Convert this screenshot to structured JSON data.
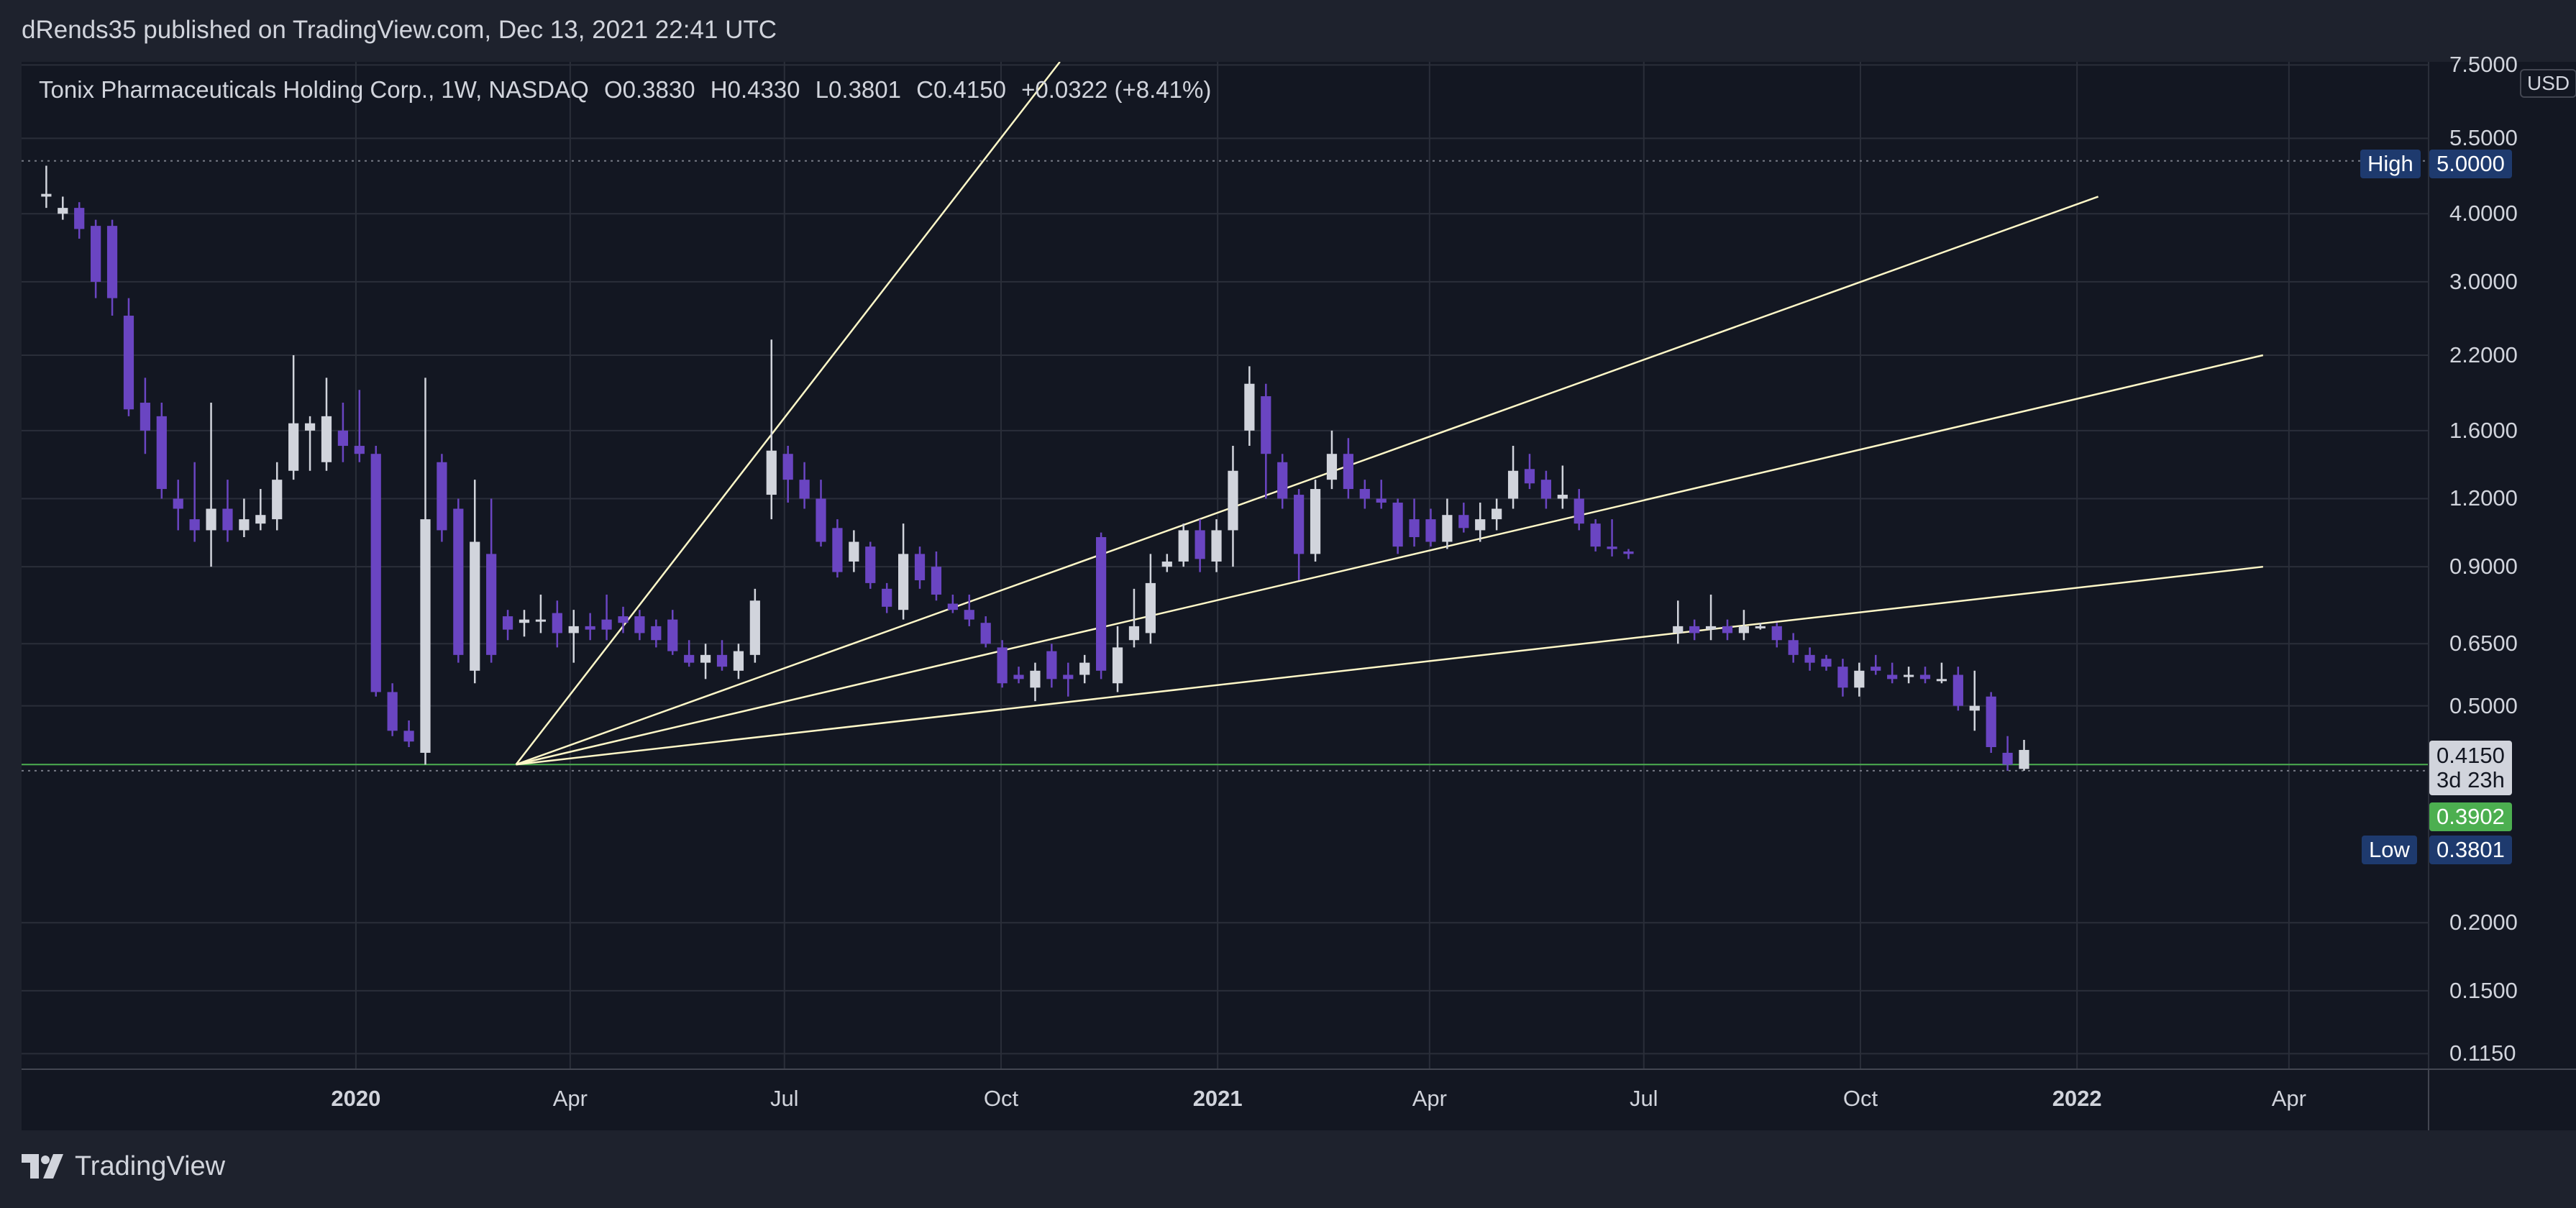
{
  "header": {
    "publish_info": "dRends35 published on TradingView.com, Dec 13, 2021 22:41 UTC"
  },
  "legend": {
    "symbol": "Tonix Pharmaceuticals Holding Corp., 1W, NASDAQ",
    "open": "O0.3830",
    "high": "H0.4330",
    "low": "L0.3801",
    "close": "C0.4150",
    "change": "+0.0322 (+8.41%)"
  },
  "currency": "USD",
  "price_tags": {
    "high_label": "High",
    "high_value": "5.0000",
    "low_label": "Low",
    "low_value": "0.3801",
    "last_value": "0.4150",
    "countdown": "3d 23h",
    "line_value": "0.3902"
  },
  "footer": {
    "brand": "TradingView"
  },
  "colors": {
    "background": "#131722",
    "bull_candle": "#d1d4dc",
    "bear_candle": "#6a45c2",
    "trendline": "#fff8c8",
    "horizontal_line": "#4caf50",
    "tag_blue": "#1e3a6e",
    "tag_green": "#4caf50"
  },
  "chart_data": {
    "type": "candlestick",
    "y_scale": "log",
    "ylim": [
      0.108,
      7.6
    ],
    "y_ticks": [
      "7.5000",
      "5.5000",
      "4.0000",
      "3.0000",
      "2.2000",
      "1.6000",
      "1.2000",
      "0.9000",
      "0.6500",
      "0.5000",
      "0.2000",
      "0.1500",
      "0.1150"
    ],
    "xlim": [
      "2019-08-12",
      "2022-05-30"
    ],
    "x_ticks": [
      {
        "label": "2020",
        "date": "2020-01-01",
        "bold": true
      },
      {
        "label": "Apr",
        "date": "2020-04-01",
        "bold": false
      },
      {
        "label": "Jul",
        "date": "2020-07-01",
        "bold": false
      },
      {
        "label": "Oct",
        "date": "2020-10-01",
        "bold": false
      },
      {
        "label": "2021",
        "date": "2021-01-01",
        "bold": true
      },
      {
        "label": "Apr",
        "date": "2021-04-01",
        "bold": false
      },
      {
        "label": "Jul",
        "date": "2021-07-01",
        "bold": false
      },
      {
        "label": "Oct",
        "date": "2021-10-01",
        "bold": false
      },
      {
        "label": "2022",
        "date": "2022-01-01",
        "bold": true
      },
      {
        "label": "Apr",
        "date": "2022-04-01",
        "bold": false
      }
    ],
    "horizontal_lines": [
      {
        "price": 5.0,
        "style": "dotted",
        "color": "#787b86"
      },
      {
        "price": 0.3801,
        "style": "dotted",
        "color": "#787b86"
      },
      {
        "price": 0.3902,
        "style": "solid",
        "color": "#4caf50"
      }
    ],
    "fan_lines": {
      "origin": {
        "date": "2020-03-09",
        "price": 0.3902
      },
      "targets": [
        {
          "date": "2020-10-26",
          "price": 7.6
        },
        {
          "date": "2022-03-21",
          "price": 2.2
        },
        {
          "date": "2022-03-21",
          "price": 0.9
        },
        {
          "date": "2022-01-10",
          "price": 4.3
        }
      ]
    },
    "candles": [
      {
        "date": "2019-08-19",
        "o": 4.3,
        "h": 4.9,
        "l": 4.1,
        "c": 4.35
      },
      {
        "date": "2019-08-26",
        "o": 4.0,
        "h": 4.3,
        "l": 3.9,
        "c": 4.1
      },
      {
        "date": "2019-09-02",
        "o": 4.1,
        "h": 4.2,
        "l": 3.6,
        "c": 3.75
      },
      {
        "date": "2019-09-09",
        "o": 3.8,
        "h": 3.9,
        "l": 2.8,
        "c": 3.0
      },
      {
        "date": "2019-09-16",
        "o": 3.8,
        "h": 3.9,
        "l": 2.6,
        "c": 2.8
      },
      {
        "date": "2019-09-23",
        "o": 2.6,
        "h": 2.8,
        "l": 1.7,
        "c": 1.75
      },
      {
        "date": "2019-09-30",
        "o": 1.8,
        "h": 2.0,
        "l": 1.45,
        "c": 1.6
      },
      {
        "date": "2019-10-07",
        "o": 1.7,
        "h": 1.8,
        "l": 1.2,
        "c": 1.25
      },
      {
        "date": "2019-10-14",
        "o": 1.2,
        "h": 1.3,
        "l": 1.05,
        "c": 1.15
      },
      {
        "date": "2019-10-21",
        "o": 1.1,
        "h": 1.4,
        "l": 1.0,
        "c": 1.05
      },
      {
        "date": "2019-10-28",
        "o": 1.05,
        "h": 1.8,
        "l": 0.9,
        "c": 1.15
      },
      {
        "date": "2019-11-04",
        "o": 1.15,
        "h": 1.3,
        "l": 1.0,
        "c": 1.05
      },
      {
        "date": "2019-11-11",
        "o": 1.05,
        "h": 1.2,
        "l": 1.02,
        "c": 1.1
      },
      {
        "date": "2019-11-18",
        "o": 1.08,
        "h": 1.25,
        "l": 1.05,
        "c": 1.12
      },
      {
        "date": "2019-11-25",
        "o": 1.1,
        "h": 1.4,
        "l": 1.05,
        "c": 1.3
      },
      {
        "date": "2019-12-02",
        "o": 1.35,
        "h": 2.2,
        "l": 1.3,
        "c": 1.65
      },
      {
        "date": "2019-12-09",
        "o": 1.6,
        "h": 1.7,
        "l": 1.35,
        "c": 1.65
      },
      {
        "date": "2019-12-16",
        "o": 1.4,
        "h": 2.0,
        "l": 1.35,
        "c": 1.7
      },
      {
        "date": "2019-12-23",
        "o": 1.6,
        "h": 1.8,
        "l": 1.4,
        "c": 1.5
      },
      {
        "date": "2019-12-30",
        "o": 1.5,
        "h": 1.9,
        "l": 1.4,
        "c": 1.45
      },
      {
        "date": "2020-01-06",
        "o": 1.45,
        "h": 1.5,
        "l": 0.52,
        "c": 0.53
      },
      {
        "date": "2020-01-13",
        "o": 0.53,
        "h": 0.55,
        "l": 0.44,
        "c": 0.45
      },
      {
        "date": "2020-01-20",
        "o": 0.45,
        "h": 0.47,
        "l": 0.42,
        "c": 0.43
      },
      {
        "date": "2020-01-27",
        "o": 0.41,
        "h": 2.0,
        "l": 0.39,
        "c": 1.1
      },
      {
        "date": "2020-02-03",
        "o": 1.4,
        "h": 1.45,
        "l": 1.0,
        "c": 1.05
      },
      {
        "date": "2020-02-10",
        "o": 1.15,
        "h": 1.2,
        "l": 0.6,
        "c": 0.62
      },
      {
        "date": "2020-02-17",
        "o": 0.58,
        "h": 1.3,
        "l": 0.55,
        "c": 1.0
      },
      {
        "date": "2020-02-24",
        "o": 0.95,
        "h": 1.2,
        "l": 0.6,
        "c": 0.62
      },
      {
        "date": "2020-03-02",
        "o": 0.73,
        "h": 0.75,
        "l": 0.66,
        "c": 0.69
      },
      {
        "date": "2020-03-09",
        "o": 0.71,
        "h": 0.75,
        "l": 0.67,
        "c": 0.72
      },
      {
        "date": "2020-03-16",
        "o": 0.72,
        "h": 0.8,
        "l": 0.68,
        "c": 0.72
      },
      {
        "date": "2020-03-23",
        "o": 0.74,
        "h": 0.78,
        "l": 0.64,
        "c": 0.68
      },
      {
        "date": "2020-03-30",
        "o": 0.68,
        "h": 0.75,
        "l": 0.6,
        "c": 0.7
      },
      {
        "date": "2020-04-06",
        "o": 0.7,
        "h": 0.74,
        "l": 0.66,
        "c": 0.69
      },
      {
        "date": "2020-04-13",
        "o": 0.72,
        "h": 0.8,
        "l": 0.66,
        "c": 0.69
      },
      {
        "date": "2020-04-20",
        "o": 0.73,
        "h": 0.76,
        "l": 0.68,
        "c": 0.71
      },
      {
        "date": "2020-04-27",
        "o": 0.73,
        "h": 0.75,
        "l": 0.66,
        "c": 0.68
      },
      {
        "date": "2020-05-04",
        "o": 0.7,
        "h": 0.72,
        "l": 0.64,
        "c": 0.66
      },
      {
        "date": "2020-05-11",
        "o": 0.72,
        "h": 0.75,
        "l": 0.62,
        "c": 0.63
      },
      {
        "date": "2020-05-18",
        "o": 0.62,
        "h": 0.66,
        "l": 0.59,
        "c": 0.6
      },
      {
        "date": "2020-05-25",
        "o": 0.6,
        "h": 0.65,
        "l": 0.56,
        "c": 0.62
      },
      {
        "date": "2020-06-01",
        "o": 0.62,
        "h": 0.66,
        "l": 0.58,
        "c": 0.59
      },
      {
        "date": "2020-06-08",
        "o": 0.58,
        "h": 0.65,
        "l": 0.56,
        "c": 0.63
      },
      {
        "date": "2020-06-15",
        "o": 0.62,
        "h": 0.82,
        "l": 0.6,
        "c": 0.78
      },
      {
        "date": "2020-06-22",
        "o": 1.22,
        "h": 2.35,
        "l": 1.1,
        "c": 1.47
      },
      {
        "date": "2020-06-29",
        "o": 1.45,
        "h": 1.5,
        "l": 1.18,
        "c": 1.3
      },
      {
        "date": "2020-07-06",
        "o": 1.3,
        "h": 1.4,
        "l": 1.15,
        "c": 1.2
      },
      {
        "date": "2020-07-13",
        "o": 1.2,
        "h": 1.3,
        "l": 0.98,
        "c": 1.0
      },
      {
        "date": "2020-07-20",
        "o": 1.06,
        "h": 1.1,
        "l": 0.86,
        "c": 0.88
      },
      {
        "date": "2020-07-27",
        "o": 0.92,
        "h": 1.05,
        "l": 0.88,
        "c": 1.0
      },
      {
        "date": "2020-08-03",
        "o": 0.98,
        "h": 1.0,
        "l": 0.82,
        "c": 0.84
      },
      {
        "date": "2020-08-10",
        "o": 0.82,
        "h": 0.84,
        "l": 0.74,
        "c": 0.76
      },
      {
        "date": "2020-08-17",
        "o": 0.75,
        "h": 1.08,
        "l": 0.72,
        "c": 0.95
      },
      {
        "date": "2020-08-24",
        "o": 0.95,
        "h": 0.98,
        "l": 0.82,
        "c": 0.85
      },
      {
        "date": "2020-08-31",
        "o": 0.9,
        "h": 0.96,
        "l": 0.78,
        "c": 0.8
      },
      {
        "date": "2020-09-07",
        "o": 0.77,
        "h": 0.8,
        "l": 0.74,
        "c": 0.75
      },
      {
        "date": "2020-09-14",
        "o": 0.75,
        "h": 0.8,
        "l": 0.7,
        "c": 0.72
      },
      {
        "date": "2020-09-21",
        "o": 0.71,
        "h": 0.73,
        "l": 0.64,
        "c": 0.65
      },
      {
        "date": "2020-09-28",
        "o": 0.64,
        "h": 0.66,
        "l": 0.54,
        "c": 0.55
      },
      {
        "date": "2020-10-05",
        "o": 0.57,
        "h": 0.59,
        "l": 0.55,
        "c": 0.56
      },
      {
        "date": "2020-10-12",
        "o": 0.54,
        "h": 0.6,
        "l": 0.51,
        "c": 0.58
      },
      {
        "date": "2020-10-19",
        "o": 0.63,
        "h": 0.65,
        "l": 0.54,
        "c": 0.56
      },
      {
        "date": "2020-10-26",
        "o": 0.57,
        "h": 0.6,
        "l": 0.52,
        "c": 0.56
      },
      {
        "date": "2020-11-02",
        "o": 0.57,
        "h": 0.62,
        "l": 0.55,
        "c": 0.6
      },
      {
        "date": "2020-11-09",
        "o": 1.02,
        "h": 1.04,
        "l": 0.56,
        "c": 0.58
      },
      {
        "date": "2020-11-16",
        "o": 0.55,
        "h": 0.7,
        "l": 0.53,
        "c": 0.64
      },
      {
        "date": "2020-11-23",
        "o": 0.66,
        "h": 0.82,
        "l": 0.64,
        "c": 0.7
      },
      {
        "date": "2020-11-30",
        "o": 0.68,
        "h": 0.95,
        "l": 0.65,
        "c": 0.84
      },
      {
        "date": "2020-12-07",
        "o": 0.9,
        "h": 0.95,
        "l": 0.88,
        "c": 0.92
      },
      {
        "date": "2020-12-14",
        "o": 0.92,
        "h": 1.08,
        "l": 0.9,
        "c": 1.05
      },
      {
        "date": "2020-12-21",
        "o": 1.05,
        "h": 1.1,
        "l": 0.88,
        "c": 0.93
      },
      {
        "date": "2020-12-28",
        "o": 0.92,
        "h": 1.1,
        "l": 0.88,
        "c": 1.05
      },
      {
        "date": "2021-01-04",
        "o": 1.05,
        "h": 1.5,
        "l": 0.9,
        "c": 1.35
      },
      {
        "date": "2021-01-11",
        "o": 1.6,
        "h": 2.1,
        "l": 1.5,
        "c": 1.95
      },
      {
        "date": "2021-01-18",
        "o": 1.85,
        "h": 1.95,
        "l": 1.2,
        "c": 1.45
      },
      {
        "date": "2021-01-25",
        "o": 1.4,
        "h": 1.45,
        "l": 1.15,
        "c": 1.2
      },
      {
        "date": "2021-02-01",
        "o": 1.22,
        "h": 1.25,
        "l": 0.85,
        "c": 0.95
      },
      {
        "date": "2021-02-08",
        "o": 0.95,
        "h": 1.3,
        "l": 0.92,
        "c": 1.25
      },
      {
        "date": "2021-02-15",
        "o": 1.3,
        "h": 1.6,
        "l": 1.25,
        "c": 1.45
      },
      {
        "date": "2021-02-22",
        "o": 1.45,
        "h": 1.55,
        "l": 1.2,
        "c": 1.25
      },
      {
        "date": "2021-03-01",
        "o": 1.25,
        "h": 1.3,
        "l": 1.15,
        "c": 1.2
      },
      {
        "date": "2021-03-08",
        "o": 1.2,
        "h": 1.3,
        "l": 1.15,
        "c": 1.18
      },
      {
        "date": "2021-03-15",
        "o": 1.18,
        "h": 1.2,
        "l": 0.95,
        "c": 0.98
      },
      {
        "date": "2021-03-22",
        "o": 1.1,
        "h": 1.2,
        "l": 0.98,
        "c": 1.02
      },
      {
        "date": "2021-03-29",
        "o": 1.1,
        "h": 1.15,
        "l": 0.98,
        "c": 1.0
      },
      {
        "date": "2021-04-05",
        "o": 1.0,
        "h": 1.2,
        "l": 0.97,
        "c": 1.12
      },
      {
        "date": "2021-04-12",
        "o": 1.12,
        "h": 1.18,
        "l": 1.04,
        "c": 1.06
      },
      {
        "date": "2021-04-19",
        "o": 1.05,
        "h": 1.18,
        "l": 1.0,
        "c": 1.1
      },
      {
        "date": "2021-04-26",
        "o": 1.1,
        "h": 1.2,
        "l": 1.05,
        "c": 1.15
      },
      {
        "date": "2021-05-03",
        "o": 1.2,
        "h": 1.5,
        "l": 1.15,
        "c": 1.35
      },
      {
        "date": "2021-05-10",
        "o": 1.36,
        "h": 1.45,
        "l": 1.25,
        "c": 1.28
      },
      {
        "date": "2021-05-17",
        "o": 1.3,
        "h": 1.35,
        "l": 1.15,
        "c": 1.2
      },
      {
        "date": "2021-05-24",
        "o": 1.2,
        "h": 1.38,
        "l": 1.15,
        "c": 1.22
      },
      {
        "date": "2021-05-31",
        "o": 1.2,
        "h": 1.25,
        "l": 1.05,
        "c": 1.08
      },
      {
        "date": "2021-06-07",
        "o": 1.08,
        "h": 1.1,
        "l": 0.96,
        "c": 0.98
      },
      {
        "date": "2021-06-14",
        "o": 0.98,
        "h": 1.1,
        "l": 0.94,
        "c": 0.97
      },
      {
        "date": "2021-06-21",
        "o": 0.96,
        "h": 0.97,
        "l": 0.93,
        "c": 0.95
      },
      {
        "date": "2021-07-12",
        "o": 0.68,
        "h": 0.78,
        "l": 0.65,
        "c": 0.7
      },
      {
        "date": "2021-07-19",
        "o": 0.7,
        "h": 0.72,
        "l": 0.66,
        "c": 0.68
      },
      {
        "date": "2021-07-26",
        "o": 0.69,
        "h": 0.8,
        "l": 0.66,
        "c": 0.7
      },
      {
        "date": "2021-08-02",
        "o": 0.7,
        "h": 0.72,
        "l": 0.66,
        "c": 0.68
      },
      {
        "date": "2021-08-09",
        "o": 0.68,
        "h": 0.75,
        "l": 0.66,
        "c": 0.7
      },
      {
        "date": "2021-08-16",
        "o": 0.7,
        "h": 0.71,
        "l": 0.69,
        "c": 0.7
      },
      {
        "date": "2021-08-23",
        "o": 0.7,
        "h": 0.71,
        "l": 0.64,
        "c": 0.66
      },
      {
        "date": "2021-08-30",
        "o": 0.66,
        "h": 0.68,
        "l": 0.6,
        "c": 0.62
      },
      {
        "date": "2021-09-06",
        "o": 0.62,
        "h": 0.64,
        "l": 0.58,
        "c": 0.6
      },
      {
        "date": "2021-09-13",
        "o": 0.61,
        "h": 0.62,
        "l": 0.58,
        "c": 0.59
      },
      {
        "date": "2021-09-20",
        "o": 0.59,
        "h": 0.61,
        "l": 0.52,
        "c": 0.54
      },
      {
        "date": "2021-09-27",
        "o": 0.54,
        "h": 0.6,
        "l": 0.52,
        "c": 0.58
      },
      {
        "date": "2021-10-04",
        "o": 0.59,
        "h": 0.62,
        "l": 0.57,
        "c": 0.58
      },
      {
        "date": "2021-10-11",
        "o": 0.57,
        "h": 0.6,
        "l": 0.55,
        "c": 0.56
      },
      {
        "date": "2021-10-18",
        "o": 0.57,
        "h": 0.59,
        "l": 0.55,
        "c": 0.57
      },
      {
        "date": "2021-10-25",
        "o": 0.57,
        "h": 0.59,
        "l": 0.55,
        "c": 0.56
      },
      {
        "date": "2021-11-01",
        "o": 0.56,
        "h": 0.6,
        "l": 0.55,
        "c": 0.56
      },
      {
        "date": "2021-11-08",
        "o": 0.57,
        "h": 0.59,
        "l": 0.49,
        "c": 0.5
      },
      {
        "date": "2021-11-15",
        "o": 0.49,
        "h": 0.58,
        "l": 0.45,
        "c": 0.5
      },
      {
        "date": "2021-11-22",
        "o": 0.52,
        "h": 0.53,
        "l": 0.41,
        "c": 0.42
      },
      {
        "date": "2021-11-29",
        "o": 0.41,
        "h": 0.44,
        "l": 0.38,
        "c": 0.39
      },
      {
        "date": "2021-12-06",
        "o": 0.383,
        "h": 0.433,
        "l": 0.3801,
        "c": 0.415
      }
    ]
  }
}
